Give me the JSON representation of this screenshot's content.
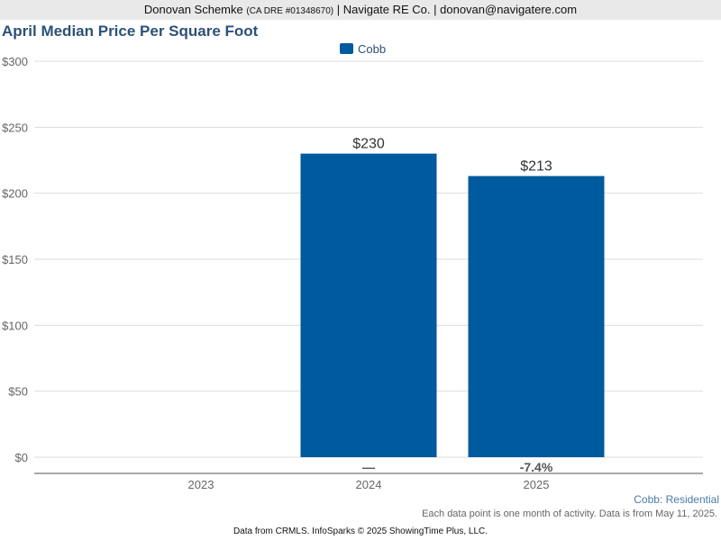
{
  "header": {
    "agent_name": "Donovan Schemke",
    "license": "(CA DRE #01348670)",
    "company": "| Navigate RE Co. | donovan@navigatere.com"
  },
  "chart_data": {
    "type": "bar",
    "title": "April Median Price Per Square Foot",
    "categories": [
      "2023",
      "2024",
      "2025"
    ],
    "series": [
      {
        "name": "Cobb",
        "values": [
          null,
          230,
          213
        ],
        "color": "#005a9e"
      }
    ],
    "data_labels": [
      "",
      "$230",
      "$213"
    ],
    "change_labels": [
      "",
      "—",
      "-7.4%"
    ],
    "y_ticks": [
      "$0",
      "$50",
      "$100",
      "$150",
      "$200",
      "$250",
      "$300"
    ],
    "ylim": [
      0,
      300
    ],
    "xlabel": "",
    "ylabel": "",
    "grid": true,
    "legend_position": "top-center"
  },
  "footer": {
    "series_label": "Cobb: Residential",
    "note": "Each data point is one month of activity. Data is from May 11, 2025.",
    "source": "Data from CRMLS. InfoSparks © 2025 ShowingTime Plus, LLC."
  }
}
